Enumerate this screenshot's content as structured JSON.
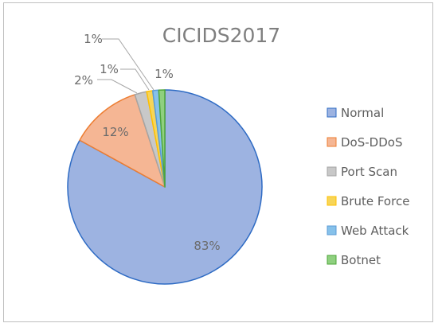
{
  "chart_data": {
    "type": "pie",
    "title": "CICIDS2017",
    "categories": [
      "Normal",
      "DoS-DDoS",
      "Port Scan",
      "Brute Force",
      "Web Attack",
      "Botnet"
    ],
    "values": [
      83,
      12,
      2,
      1,
      1,
      1
    ],
    "data_labels": [
      "83%",
      "12%",
      "2%",
      "1%",
      "1%",
      "1%"
    ],
    "legend_position": "right",
    "colors": {
      "fills": [
        "#9db3e1",
        "#f5b694",
        "#c8c8c8",
        "#f7d558",
        "#86c1ea",
        "#8fd07f"
      ],
      "strokes": [
        "#2e6bc4",
        "#ed7d31",
        "#a5a5a5",
        "#ffc000",
        "#5b9bd5",
        "#4ea63a"
      ]
    }
  }
}
